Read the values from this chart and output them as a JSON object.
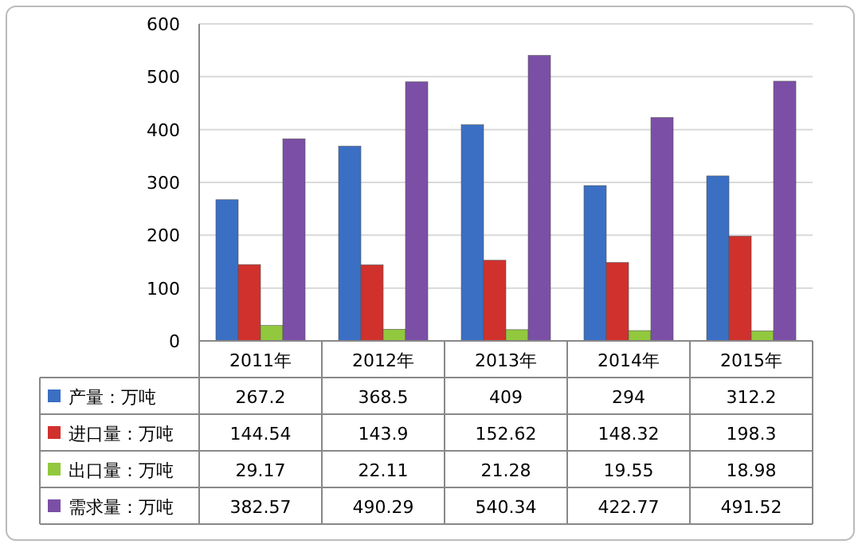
{
  "chart_data": {
    "type": "bar",
    "categories": [
      "2011年",
      "2012年",
      "2013年",
      "2014年",
      "2015年"
    ],
    "series": [
      {
        "name": "产量：万吨",
        "color": "#3a6fc4",
        "values": [
          267.2,
          368.5,
          409,
          294,
          312.2
        ]
      },
      {
        "name": "进口量：万吨",
        "color": "#d0312d",
        "values": [
          144.54,
          143.9,
          152.62,
          148.32,
          198.3
        ]
      },
      {
        "name": "出口量：万吨",
        "color": "#92c83e",
        "values": [
          29.17,
          22.11,
          21.28,
          19.55,
          18.98
        ]
      },
      {
        "name": "需求量：万吨",
        "color": "#7b4fa6",
        "values": [
          382.57,
          490.29,
          540.34,
          422.77,
          491.52
        ]
      }
    ],
    "ylim": [
      0,
      600
    ],
    "yticks": [
      0,
      100,
      200,
      300,
      400,
      500,
      600
    ],
    "grid": "y",
    "legend": "bottom",
    "data_labels": true
  }
}
